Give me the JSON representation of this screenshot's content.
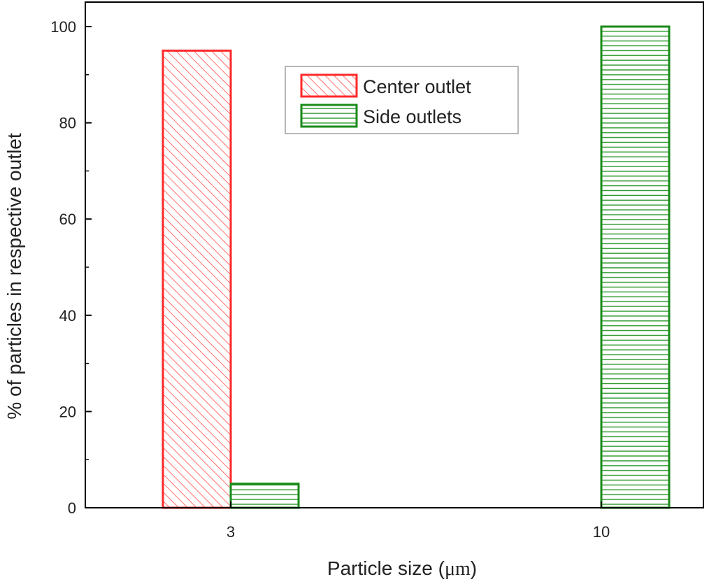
{
  "chart_data": {
    "type": "bar",
    "categories": [
      "3",
      "10"
    ],
    "series": [
      {
        "name": "Center outlet",
        "values": [
          95,
          0
        ],
        "color": "#ff2a2a",
        "pattern": "diagonal-hatch"
      },
      {
        "name": "Side outlets",
        "values": [
          5,
          100
        ],
        "color": "#1a8a1a",
        "pattern": "horizontal-lines"
      }
    ],
    "xlabel_prefix": "Particle size (",
    "xlabel_unit": "μm",
    "xlabel_suffix": ")",
    "ylabel": "% of particles in respective outlet",
    "ylim": [
      0,
      100
    ],
    "yticks": [
      0,
      20,
      40,
      60,
      80,
      100
    ],
    "grid": false,
    "legend_position": "top-center"
  }
}
